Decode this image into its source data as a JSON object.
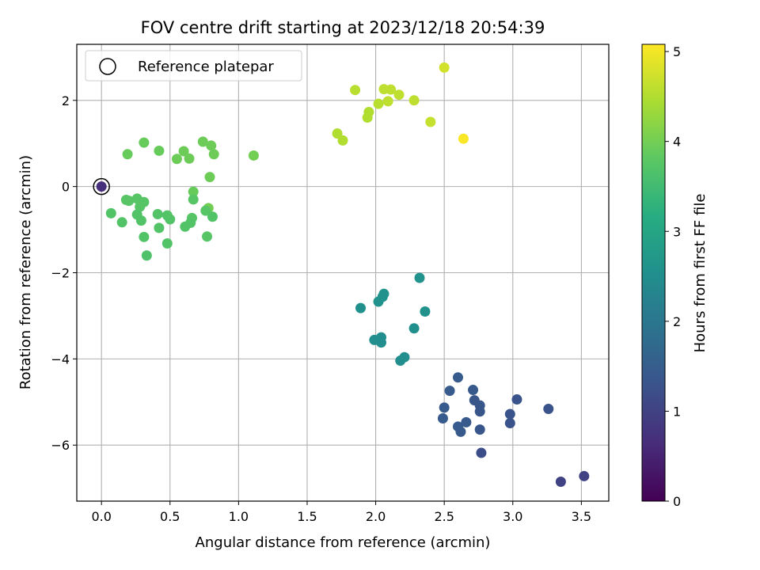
{
  "chart_data": {
    "type": "scatter",
    "title": "FOV centre drift starting at 2023/12/18 20:54:39",
    "xlabel": "Angular distance from reference (arcmin)",
    "ylabel": "Rotation from reference (arcmin)",
    "xlim": [
      -0.18,
      3.7
    ],
    "ylim": [
      -7.3,
      3.3
    ],
    "xticks": [
      0.0,
      0.5,
      1.0,
      1.5,
      2.0,
      2.5,
      3.0,
      3.5
    ],
    "xtick_labels": [
      "0.0",
      "0.5",
      "1.0",
      "1.5",
      "2.0",
      "2.5",
      "3.0",
      "3.5"
    ],
    "yticks": [
      -6,
      -4,
      -2,
      0,
      2
    ],
    "ytick_labels": [
      "−6",
      "−4",
      "−2",
      "0",
      "2"
    ],
    "grid": true,
    "legend": {
      "placement": "top-left",
      "entries": [
        "Reference platepar"
      ]
    },
    "colorbar": {
      "label": "Hours from first FF file",
      "range": [
        0,
        5.08
      ],
      "ticks": [
        0,
        1,
        2,
        3,
        4,
        5
      ],
      "tick_labels": [
        "0",
        "1",
        "2",
        "3",
        "4",
        "5"
      ],
      "colormap": "viridis"
    },
    "reference": {
      "x": 0.0,
      "y": 0.0,
      "c": 0.0
    },
    "points": [
      {
        "x": 0.0,
        "y": 0.0,
        "c": 0.68
      },
      {
        "x": 3.52,
        "y": -6.72,
        "c": 1.0
      },
      {
        "x": 3.35,
        "y": -6.85,
        "c": 1.0
      },
      {
        "x": 2.77,
        "y": -6.18,
        "c": 1.2
      },
      {
        "x": 3.26,
        "y": -5.16,
        "c": 1.3
      },
      {
        "x": 3.03,
        "y": -4.94,
        "c": 1.3
      },
      {
        "x": 2.98,
        "y": -5.28,
        "c": 1.3
      },
      {
        "x": 2.98,
        "y": -5.49,
        "c": 1.3
      },
      {
        "x": 2.76,
        "y": -5.22,
        "c": 1.35
      },
      {
        "x": 2.76,
        "y": -5.64,
        "c": 1.35
      },
      {
        "x": 2.76,
        "y": -5.08,
        "c": 1.35
      },
      {
        "x": 2.72,
        "y": -4.96,
        "c": 1.35
      },
      {
        "x": 2.71,
        "y": -4.72,
        "c": 1.4
      },
      {
        "x": 2.66,
        "y": -5.47,
        "c": 1.4
      },
      {
        "x": 2.62,
        "y": -5.69,
        "c": 1.4
      },
      {
        "x": 2.6,
        "y": -5.57,
        "c": 1.45
      },
      {
        "x": 2.6,
        "y": -4.43,
        "c": 1.45
      },
      {
        "x": 2.54,
        "y": -4.74,
        "c": 1.45
      },
      {
        "x": 2.5,
        "y": -5.13,
        "c": 1.45
      },
      {
        "x": 2.49,
        "y": -5.38,
        "c": 1.45
      },
      {
        "x": 2.32,
        "y": -2.12,
        "c": 2.6
      },
      {
        "x": 2.36,
        "y": -2.9,
        "c": 2.6
      },
      {
        "x": 2.28,
        "y": -3.29,
        "c": 2.55
      },
      {
        "x": 2.21,
        "y": -3.96,
        "c": 2.5
      },
      {
        "x": 2.18,
        "y": -4.04,
        "c": 2.5
      },
      {
        "x": 2.06,
        "y": -2.49,
        "c": 2.6
      },
      {
        "x": 2.05,
        "y": -2.56,
        "c": 2.6
      },
      {
        "x": 2.02,
        "y": -2.67,
        "c": 2.6
      },
      {
        "x": 1.89,
        "y": -2.82,
        "c": 2.55
      },
      {
        "x": 2.04,
        "y": -3.5,
        "c": 2.5
      },
      {
        "x": 2.04,
        "y": -3.62,
        "c": 2.5
      },
      {
        "x": 1.99,
        "y": -3.56,
        "c": 2.5
      },
      {
        "x": 2.5,
        "y": 2.76,
        "c": 4.75
      },
      {
        "x": 2.64,
        "y": 1.11,
        "c": 5.05
      },
      {
        "x": 2.4,
        "y": 1.5,
        "c": 4.65
      },
      {
        "x": 2.28,
        "y": 2.0,
        "c": 4.6
      },
      {
        "x": 2.17,
        "y": 2.13,
        "c": 4.6
      },
      {
        "x": 2.11,
        "y": 2.25,
        "c": 4.6
      },
      {
        "x": 2.06,
        "y": 2.26,
        "c": 4.6
      },
      {
        "x": 2.09,
        "y": 1.98,
        "c": 4.6
      },
      {
        "x": 2.02,
        "y": 1.92,
        "c": 4.55
      },
      {
        "x": 1.95,
        "y": 1.73,
        "c": 4.5
      },
      {
        "x": 1.94,
        "y": 1.6,
        "c": 4.5
      },
      {
        "x": 1.85,
        "y": 2.24,
        "c": 4.55
      },
      {
        "x": 1.76,
        "y": 1.07,
        "c": 4.5
      },
      {
        "x": 1.72,
        "y": 1.23,
        "c": 4.5
      },
      {
        "x": 1.11,
        "y": 0.72,
        "c": 4.0
      },
      {
        "x": 0.82,
        "y": 0.75,
        "c": 3.95
      },
      {
        "x": 0.8,
        "y": 0.95,
        "c": 3.95
      },
      {
        "x": 0.74,
        "y": 1.04,
        "c": 3.95
      },
      {
        "x": 0.79,
        "y": 0.22,
        "c": 3.95
      },
      {
        "x": 0.78,
        "y": -0.5,
        "c": 4.0
      },
      {
        "x": 0.81,
        "y": -0.7,
        "c": 3.7
      },
      {
        "x": 0.67,
        "y": -0.12,
        "c": 3.9
      },
      {
        "x": 0.64,
        "y": 0.65,
        "c": 3.95
      },
      {
        "x": 0.6,
        "y": 0.82,
        "c": 3.95
      },
      {
        "x": 0.55,
        "y": 0.64,
        "c": 3.95
      },
      {
        "x": 0.42,
        "y": 0.83,
        "c": 3.9
      },
      {
        "x": 0.31,
        "y": 1.02,
        "c": 3.9
      },
      {
        "x": 0.19,
        "y": 0.75,
        "c": 3.9
      },
      {
        "x": 0.67,
        "y": -0.3,
        "c": 3.75
      },
      {
        "x": 0.66,
        "y": -0.73,
        "c": 3.75
      },
      {
        "x": 0.65,
        "y": -0.84,
        "c": 3.7
      },
      {
        "x": 0.61,
        "y": -0.93,
        "c": 3.7
      },
      {
        "x": 0.76,
        "y": -0.56,
        "c": 3.75
      },
      {
        "x": 0.77,
        "y": -1.16,
        "c": 3.75
      },
      {
        "x": 0.48,
        "y": -0.67,
        "c": 3.7
      },
      {
        "x": 0.5,
        "y": -0.76,
        "c": 3.7
      },
      {
        "x": 0.41,
        "y": -0.64,
        "c": 3.7
      },
      {
        "x": 0.42,
        "y": -0.96,
        "c": 3.7
      },
      {
        "x": 0.48,
        "y": -1.32,
        "c": 3.7
      },
      {
        "x": 0.31,
        "y": -1.17,
        "c": 3.7
      },
      {
        "x": 0.33,
        "y": -1.6,
        "c": 3.65
      },
      {
        "x": 0.31,
        "y": -0.36,
        "c": 3.75
      },
      {
        "x": 0.26,
        "y": -0.28,
        "c": 3.75
      },
      {
        "x": 0.28,
        "y": -0.47,
        "c": 3.75
      },
      {
        "x": 0.26,
        "y": -0.65,
        "c": 3.7
      },
      {
        "x": 0.29,
        "y": -0.79,
        "c": 3.7
      },
      {
        "x": 0.18,
        "y": -0.31,
        "c": 3.75
      },
      {
        "x": 0.2,
        "y": -0.33,
        "c": 3.75
      },
      {
        "x": 0.15,
        "y": -0.83,
        "c": 3.7
      },
      {
        "x": 0.07,
        "y": -0.62,
        "c": 3.7
      }
    ]
  }
}
